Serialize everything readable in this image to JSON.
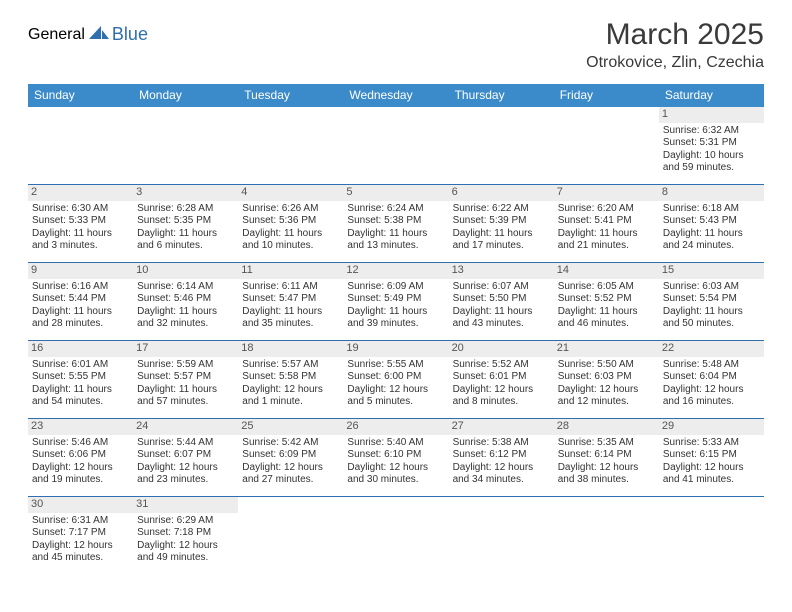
{
  "logo": {
    "part1": "General",
    "part2": "Blue"
  },
  "title": "March 2025",
  "location": "Otrokovice, Zlin, Czechia",
  "colors": {
    "header_bg": "#3b8bca",
    "header_text": "#ffffff",
    "rule": "#2f6fb0",
    "daynum_bg": "#ededed",
    "body_text": "#333333"
  },
  "weekdays": [
    "Sunday",
    "Monday",
    "Tuesday",
    "Wednesday",
    "Thursday",
    "Friday",
    "Saturday"
  ],
  "weeks": [
    [
      null,
      null,
      null,
      null,
      null,
      null,
      {
        "n": "1",
        "sr": "6:32 AM",
        "ss": "5:31 PM",
        "dl": "10 hours and 59 minutes."
      }
    ],
    [
      {
        "n": "2",
        "sr": "6:30 AM",
        "ss": "5:33 PM",
        "dl": "11 hours and 3 minutes."
      },
      {
        "n": "3",
        "sr": "6:28 AM",
        "ss": "5:35 PM",
        "dl": "11 hours and 6 minutes."
      },
      {
        "n": "4",
        "sr": "6:26 AM",
        "ss": "5:36 PM",
        "dl": "11 hours and 10 minutes."
      },
      {
        "n": "5",
        "sr": "6:24 AM",
        "ss": "5:38 PM",
        "dl": "11 hours and 13 minutes."
      },
      {
        "n": "6",
        "sr": "6:22 AM",
        "ss": "5:39 PM",
        "dl": "11 hours and 17 minutes."
      },
      {
        "n": "7",
        "sr": "6:20 AM",
        "ss": "5:41 PM",
        "dl": "11 hours and 21 minutes."
      },
      {
        "n": "8",
        "sr": "6:18 AM",
        "ss": "5:43 PM",
        "dl": "11 hours and 24 minutes."
      }
    ],
    [
      {
        "n": "9",
        "sr": "6:16 AM",
        "ss": "5:44 PM",
        "dl": "11 hours and 28 minutes."
      },
      {
        "n": "10",
        "sr": "6:14 AM",
        "ss": "5:46 PM",
        "dl": "11 hours and 32 minutes."
      },
      {
        "n": "11",
        "sr": "6:11 AM",
        "ss": "5:47 PM",
        "dl": "11 hours and 35 minutes."
      },
      {
        "n": "12",
        "sr": "6:09 AM",
        "ss": "5:49 PM",
        "dl": "11 hours and 39 minutes."
      },
      {
        "n": "13",
        "sr": "6:07 AM",
        "ss": "5:50 PM",
        "dl": "11 hours and 43 minutes."
      },
      {
        "n": "14",
        "sr": "6:05 AM",
        "ss": "5:52 PM",
        "dl": "11 hours and 46 minutes."
      },
      {
        "n": "15",
        "sr": "6:03 AM",
        "ss": "5:54 PM",
        "dl": "11 hours and 50 minutes."
      }
    ],
    [
      {
        "n": "16",
        "sr": "6:01 AM",
        "ss": "5:55 PM",
        "dl": "11 hours and 54 minutes."
      },
      {
        "n": "17",
        "sr": "5:59 AM",
        "ss": "5:57 PM",
        "dl": "11 hours and 57 minutes."
      },
      {
        "n": "18",
        "sr": "5:57 AM",
        "ss": "5:58 PM",
        "dl": "12 hours and 1 minute."
      },
      {
        "n": "19",
        "sr": "5:55 AM",
        "ss": "6:00 PM",
        "dl": "12 hours and 5 minutes."
      },
      {
        "n": "20",
        "sr": "5:52 AM",
        "ss": "6:01 PM",
        "dl": "12 hours and 8 minutes."
      },
      {
        "n": "21",
        "sr": "5:50 AM",
        "ss": "6:03 PM",
        "dl": "12 hours and 12 minutes."
      },
      {
        "n": "22",
        "sr": "5:48 AM",
        "ss": "6:04 PM",
        "dl": "12 hours and 16 minutes."
      }
    ],
    [
      {
        "n": "23",
        "sr": "5:46 AM",
        "ss": "6:06 PM",
        "dl": "12 hours and 19 minutes."
      },
      {
        "n": "24",
        "sr": "5:44 AM",
        "ss": "6:07 PM",
        "dl": "12 hours and 23 minutes."
      },
      {
        "n": "25",
        "sr": "5:42 AM",
        "ss": "6:09 PM",
        "dl": "12 hours and 27 minutes."
      },
      {
        "n": "26",
        "sr": "5:40 AM",
        "ss": "6:10 PM",
        "dl": "12 hours and 30 minutes."
      },
      {
        "n": "27",
        "sr": "5:38 AM",
        "ss": "6:12 PM",
        "dl": "12 hours and 34 minutes."
      },
      {
        "n": "28",
        "sr": "5:35 AM",
        "ss": "6:14 PM",
        "dl": "12 hours and 38 minutes."
      },
      {
        "n": "29",
        "sr": "5:33 AM",
        "ss": "6:15 PM",
        "dl": "12 hours and 41 minutes."
      }
    ],
    [
      {
        "n": "30",
        "sr": "6:31 AM",
        "ss": "7:17 PM",
        "dl": "12 hours and 45 minutes."
      },
      {
        "n": "31",
        "sr": "6:29 AM",
        "ss": "7:18 PM",
        "dl": "12 hours and 49 minutes."
      },
      null,
      null,
      null,
      null,
      null
    ]
  ],
  "labels": {
    "sunrise": "Sunrise: ",
    "sunset": "Sunset: ",
    "daylight": "Daylight: "
  }
}
